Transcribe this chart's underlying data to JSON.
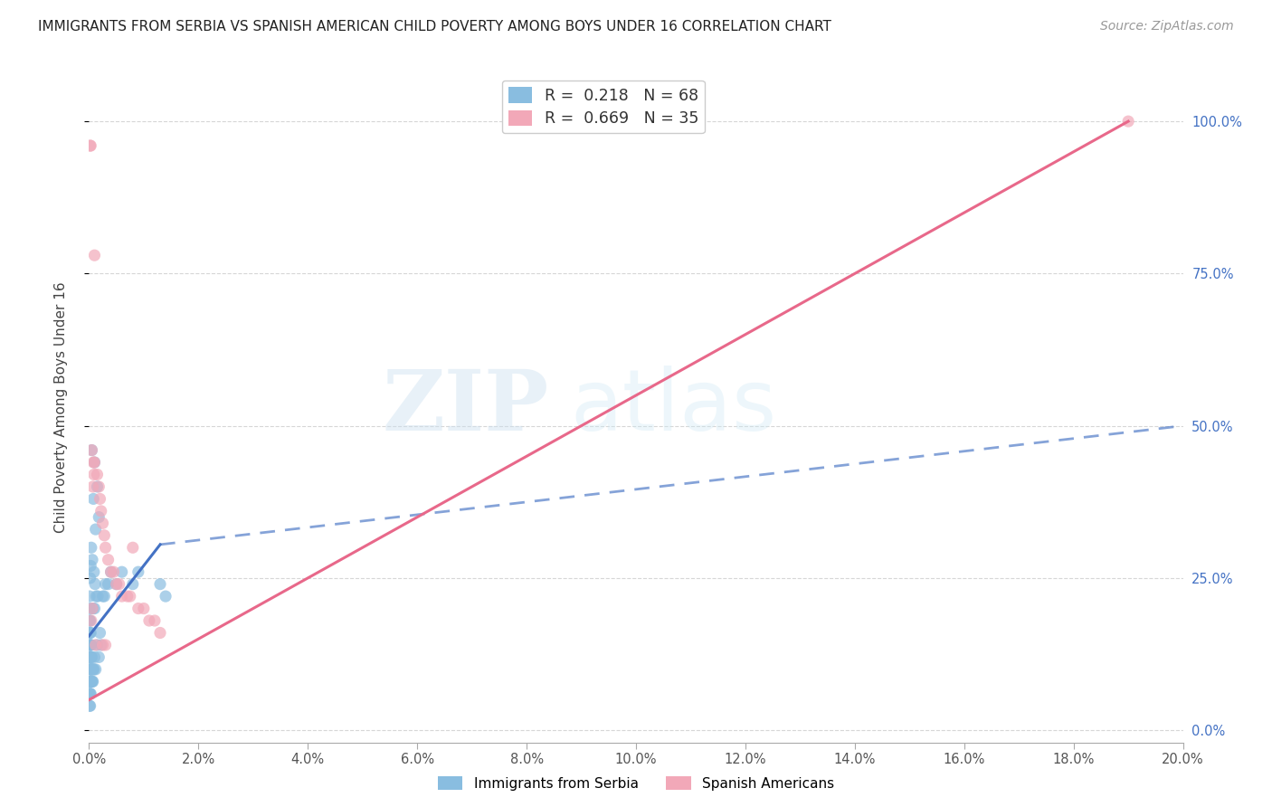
{
  "title": "IMMIGRANTS FROM SERBIA VS SPANISH AMERICAN CHILD POVERTY AMONG BOYS UNDER 16 CORRELATION CHART",
  "source": "Source: ZipAtlas.com",
  "ylabel": "Child Poverty Among Boys Under 16",
  "xlim": [
    0.0,
    0.2
  ],
  "ylim": [
    -0.02,
    1.08
  ],
  "legend_blue_R": "0.218",
  "legend_blue_N": "68",
  "legend_pink_R": "0.669",
  "legend_pink_N": "35",
  "legend_label_blue": "Immigrants from Serbia",
  "legend_label_pink": "Spanish Americans",
  "watermark_zip": "ZIP",
  "watermark_atlas": "atlas",
  "blue_color": "#89bde0",
  "pink_color": "#f2a8b8",
  "blue_line_color": "#4472c4",
  "pink_line_color": "#e8688a",
  "blue_scatter": [
    [
      0.0005,
      0.46
    ],
    [
      0.001,
      0.44
    ],
    [
      0.0008,
      0.38
    ],
    [
      0.0012,
      0.33
    ],
    [
      0.0015,
      0.4
    ],
    [
      0.0018,
      0.35
    ],
    [
      0.0003,
      0.27
    ],
    [
      0.0004,
      0.3
    ],
    [
      0.0002,
      0.25
    ],
    [
      0.0006,
      0.28
    ],
    [
      0.0009,
      0.26
    ],
    [
      0.0011,
      0.24
    ],
    [
      0.0013,
      0.22
    ],
    [
      0.0016,
      0.22
    ],
    [
      0.0007,
      0.2
    ],
    [
      0.001,
      0.2
    ],
    [
      0.0001,
      0.22
    ],
    [
      0.0001,
      0.2
    ],
    [
      0.0001,
      0.18
    ],
    [
      0.0001,
      0.16
    ],
    [
      0.0001,
      0.14
    ],
    [
      0.0001,
      0.12
    ],
    [
      0.0001,
      0.1
    ],
    [
      0.0001,
      0.08
    ],
    [
      0.0001,
      0.06
    ],
    [
      0.0001,
      0.04
    ],
    [
      0.0002,
      0.18
    ],
    [
      0.0002,
      0.16
    ],
    [
      0.0002,
      0.14
    ],
    [
      0.0002,
      0.12
    ],
    [
      0.0002,
      0.1
    ],
    [
      0.0002,
      0.08
    ],
    [
      0.0002,
      0.06
    ],
    [
      0.0002,
      0.04
    ],
    [
      0.0003,
      0.16
    ],
    [
      0.0003,
      0.14
    ],
    [
      0.0003,
      0.12
    ],
    [
      0.0003,
      0.1
    ],
    [
      0.0003,
      0.08
    ],
    [
      0.0003,
      0.06
    ],
    [
      0.0004,
      0.14
    ],
    [
      0.0004,
      0.12
    ],
    [
      0.0004,
      0.1
    ],
    [
      0.0004,
      0.08
    ],
    [
      0.0005,
      0.12
    ],
    [
      0.0005,
      0.1
    ],
    [
      0.0005,
      0.08
    ],
    [
      0.0006,
      0.1
    ],
    [
      0.0006,
      0.08
    ],
    [
      0.0007,
      0.08
    ],
    [
      0.0008,
      0.1
    ],
    [
      0.0009,
      0.1
    ],
    [
      0.001,
      0.12
    ],
    [
      0.0012,
      0.1
    ],
    [
      0.0015,
      0.14
    ],
    [
      0.0018,
      0.12
    ],
    [
      0.002,
      0.16
    ],
    [
      0.0022,
      0.14
    ],
    [
      0.0025,
      0.22
    ],
    [
      0.0028,
      0.22
    ],
    [
      0.003,
      0.24
    ],
    [
      0.0035,
      0.24
    ],
    [
      0.004,
      0.26
    ],
    [
      0.005,
      0.24
    ],
    [
      0.006,
      0.26
    ],
    [
      0.008,
      0.24
    ],
    [
      0.009,
      0.26
    ],
    [
      0.013,
      0.24
    ],
    [
      0.014,
      0.22
    ]
  ],
  "pink_scatter": [
    [
      0.0002,
      0.96
    ],
    [
      0.0003,
      0.96
    ],
    [
      0.001,
      0.78
    ],
    [
      0.0005,
      0.46
    ],
    [
      0.0008,
      0.44
    ],
    [
      0.001,
      0.44
    ],
    [
      0.0015,
      0.42
    ],
    [
      0.0018,
      0.4
    ],
    [
      0.002,
      0.38
    ],
    [
      0.0022,
      0.36
    ],
    [
      0.0025,
      0.34
    ],
    [
      0.0028,
      0.32
    ],
    [
      0.003,
      0.3
    ],
    [
      0.0035,
      0.28
    ],
    [
      0.004,
      0.26
    ],
    [
      0.0045,
      0.26
    ],
    [
      0.005,
      0.24
    ],
    [
      0.0055,
      0.24
    ],
    [
      0.006,
      0.22
    ],
    [
      0.007,
      0.22
    ],
    [
      0.0075,
      0.22
    ],
    [
      0.008,
      0.3
    ],
    [
      0.009,
      0.2
    ],
    [
      0.01,
      0.2
    ],
    [
      0.011,
      0.18
    ],
    [
      0.012,
      0.18
    ],
    [
      0.013,
      0.16
    ],
    [
      0.0007,
      0.4
    ],
    [
      0.0009,
      0.42
    ],
    [
      0.0006,
      0.2
    ],
    [
      0.0004,
      0.18
    ],
    [
      0.0012,
      0.14
    ],
    [
      0.0025,
      0.14
    ],
    [
      0.003,
      0.14
    ],
    [
      0.19,
      1.0
    ]
  ],
  "blue_trendline_solid": [
    [
      0.0,
      0.155
    ],
    [
      0.013,
      0.305
    ]
  ],
  "blue_trendline_dashed": [
    [
      0.013,
      0.305
    ],
    [
      0.2,
      0.5
    ]
  ],
  "pink_trendline": [
    [
      0.0,
      0.05
    ],
    [
      0.19,
      1.0
    ]
  ]
}
